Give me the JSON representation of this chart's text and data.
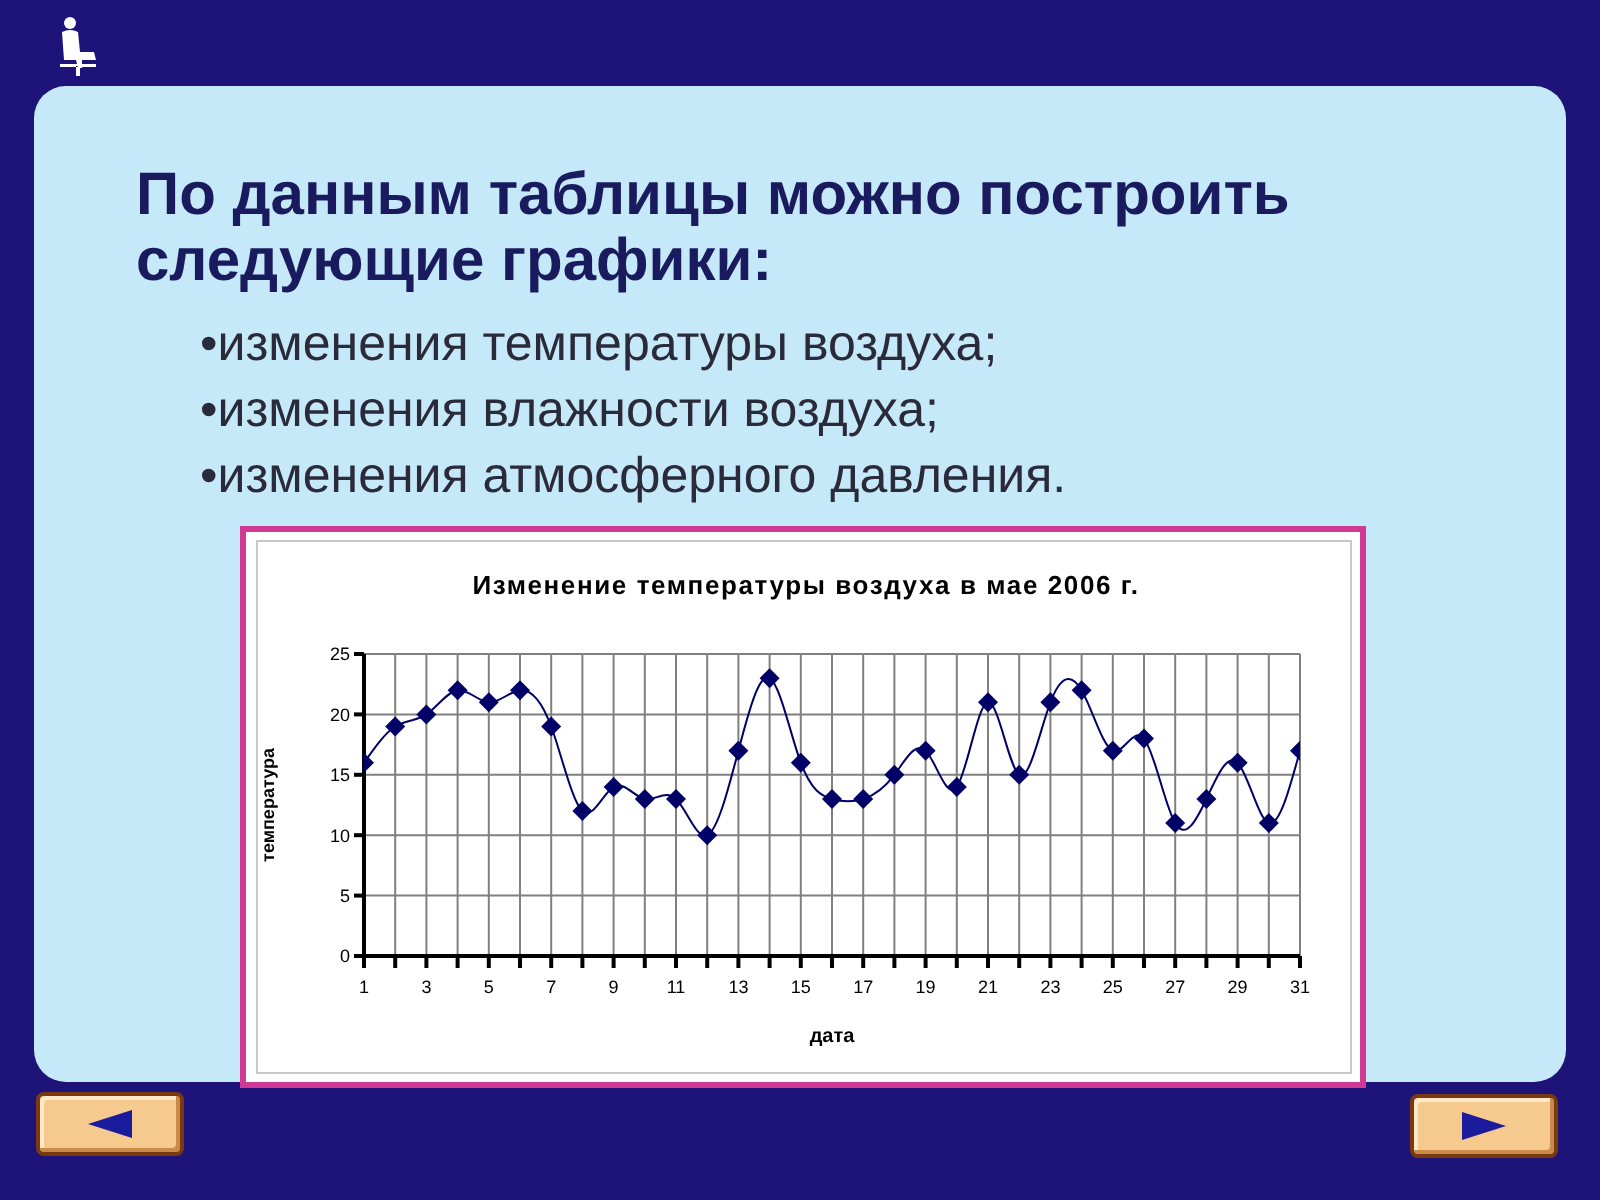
{
  "chart_data": {
    "type": "line",
    "title": "Изменение температуры воздуха в мае 2006 г.",
    "xlabel": "дата",
    "ylabel": "температура",
    "annotations": [
      "По данным таблицы можно построить следующие графики:",
      "•изменения температуры воздуха;",
      "•изменения влажности воздуха;",
      "•изменения атмосферного давления."
    ],
    "x": [
      1,
      2,
      3,
      4,
      5,
      6,
      7,
      8,
      9,
      10,
      11,
      12,
      13,
      14,
      15,
      16,
      17,
      18,
      19,
      20,
      21,
      22,
      23,
      24,
      25,
      26,
      27,
      28,
      29,
      30,
      31
    ],
    "values": [
      16,
      19,
      20,
      22,
      21,
      22,
      19,
      12,
      14,
      13,
      13,
      10,
      17,
      23,
      16,
      13,
      13,
      15,
      17,
      14,
      21,
      15,
      21,
      22,
      17,
      18,
      11,
      13,
      16,
      11,
      17
    ],
    "color": "#000066",
    "marker": "diamond",
    "line_style": "solid",
    "grid": true,
    "xlim": [
      1,
      31
    ],
    "xticks": [
      1,
      {
        "value": 2,
        "label": null
      },
      3,
      {
        "value": 4,
        "label": null
      },
      5,
      {
        "value": 6,
        "label": null
      },
      7,
      {
        "value": 8,
        "label": null
      },
      9,
      {
        "value": 10,
        "label": null
      },
      11,
      {
        "value": 12,
        "label": null
      },
      13,
      {
        "value": 14,
        "label": null
      },
      15,
      {
        "value": 16,
        "label": null
      },
      17,
      {
        "value": 18,
        "label": null
      },
      19,
      {
        "value": 20,
        "label": null
      },
      21,
      {
        "value": 22,
        "label": null
      },
      23,
      {
        "value": 24,
        "label": null
      },
      25,
      {
        "value": 26,
        "label": null
      },
      27,
      {
        "value": 28,
        "label": null
      },
      29,
      {
        "value": 30,
        "label": null
      },
      31
    ],
    "ylim": [
      0,
      25
    ],
    "yticks": [
      0,
      5,
      10,
      15,
      20,
      25
    ]
  }
}
